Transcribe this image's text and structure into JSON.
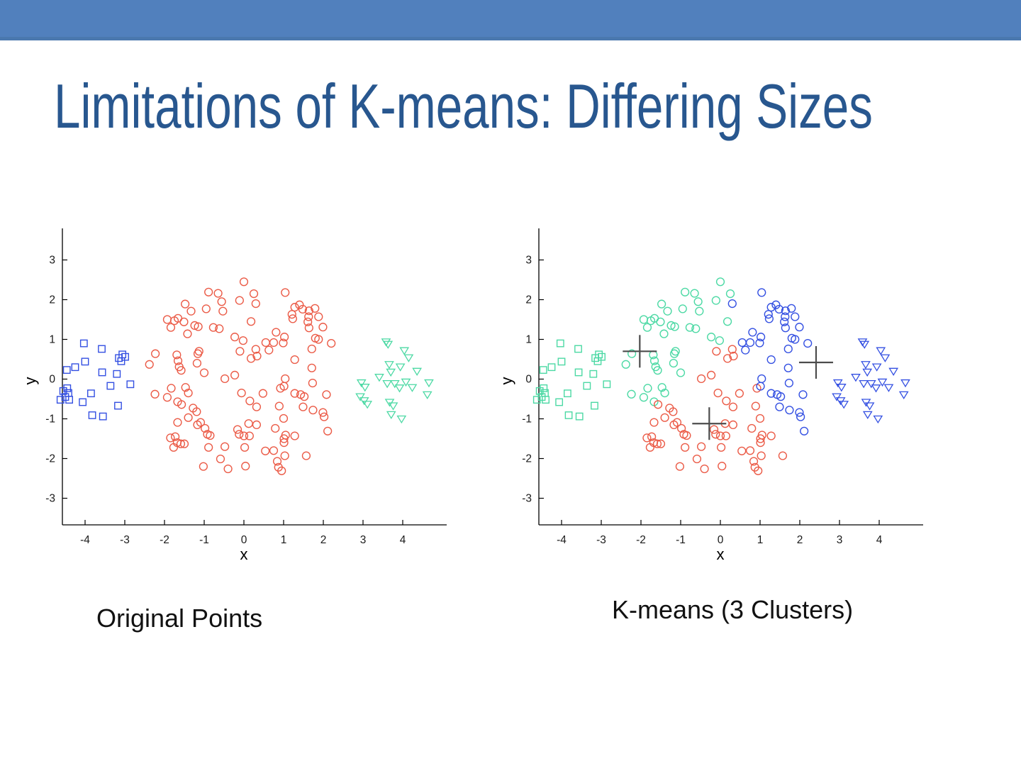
{
  "slide": {
    "header_bar": {
      "color": "#5180BD",
      "edge_color": "#4A78AE"
    },
    "title": {
      "text": "Limitations of K-means: Differing Sizes",
      "color": "#28578F"
    }
  },
  "chart_data": {
    "type": "scatter",
    "plots": [
      {
        "id": "original",
        "caption": "Original Points",
        "color_mode": "by_shape",
        "show_centroids": false
      },
      {
        "id": "kmeans",
        "caption": "K-means (3 Clusters)",
        "color_mode": "by_nearest_centroid",
        "show_centroids": true
      }
    ],
    "axes": {
      "xlabel": "x",
      "ylabel": "y",
      "xticks": [
        -4,
        -3,
        -2,
        -1,
        0,
        1,
        2,
        3,
        4
      ],
      "yticks": [
        -3,
        -2,
        -1,
        0,
        1,
        2,
        3
      ],
      "xlim": [
        -4.6,
        5.1
      ],
      "ylim": [
        -3.65,
        3.8
      ],
      "grid": false,
      "axis_color": "#000000",
      "tick_label_color": "#1a1a1a"
    },
    "palette": {
      "blue": "#3450E2",
      "red": "#EB5B47",
      "green": "#4CD9A4",
      "centroid": "#4C4C4C"
    },
    "original_shape_colors": {
      "square": "blue",
      "circle": "red",
      "triangle": "green"
    },
    "centroids": [
      {
        "x": -2.03,
        "y": 0.7,
        "color": "green"
      },
      {
        "x": -0.28,
        "y": -1.12,
        "color": "red"
      },
      {
        "x": 2.41,
        "y": 0.42,
        "color": "blue"
      }
    ],
    "clusters": [
      {
        "shape": "square",
        "points": [
          [
            -4.03,
            0.9
          ],
          [
            -3.58,
            0.76
          ],
          [
            -3.06,
            0.62
          ],
          [
            -3.15,
            0.53
          ],
          [
            -2.99,
            0.56
          ],
          [
            -3.09,
            0.45
          ],
          [
            -4.0,
            0.44
          ],
          [
            -4.46,
            0.23
          ],
          [
            -4.25,
            0.3
          ],
          [
            -3.57,
            0.17
          ],
          [
            -3.2,
            0.13
          ],
          [
            -3.36,
            -0.17
          ],
          [
            -2.86,
            -0.13
          ],
          [
            -4.45,
            -0.23
          ],
          [
            -4.42,
            -0.35
          ],
          [
            -4.55,
            -0.3
          ],
          [
            -4.5,
            -0.45
          ],
          [
            -4.62,
            -0.52
          ],
          [
            -4.4,
            -0.52
          ],
          [
            -4.06,
            -0.58
          ],
          [
            -3.85,
            -0.36
          ],
          [
            -3.17,
            -0.67
          ],
          [
            -3.82,
            -0.91
          ],
          [
            -3.55,
            -0.94
          ]
        ]
      },
      {
        "shape": "circle",
        "points": [
          [
            0.0,
            2.45
          ],
          [
            -0.89,
            2.19
          ],
          [
            -0.65,
            2.16
          ],
          [
            0.25,
            2.15
          ],
          [
            1.04,
            2.18
          ],
          [
            -0.11,
            1.98
          ],
          [
            -0.56,
            1.95
          ],
          [
            -1.48,
            1.89
          ],
          [
            0.3,
            1.9
          ],
          [
            1.4,
            1.87
          ],
          [
            -0.95,
            1.77
          ],
          [
            1.28,
            1.81
          ],
          [
            -1.33,
            1.71
          ],
          [
            -0.53,
            1.71
          ],
          [
            1.48,
            1.76
          ],
          [
            1.64,
            1.72
          ],
          [
            1.79,
            1.78
          ],
          [
            1.21,
            1.63
          ],
          [
            -1.93,
            1.5
          ],
          [
            -1.75,
            1.47
          ],
          [
            -1.66,
            1.53
          ],
          [
            -1.51,
            1.44
          ],
          [
            -1.84,
            1.3
          ],
          [
            -1.42,
            1.14
          ],
          [
            -1.24,
            1.35
          ],
          [
            -1.15,
            1.32
          ],
          [
            -0.77,
            1.3
          ],
          [
            -0.62,
            1.27
          ],
          [
            -0.23,
            1.06
          ],
          [
            0.18,
            1.45
          ],
          [
            1.23,
            1.52
          ],
          [
            1.63,
            1.57
          ],
          [
            1.88,
            1.57
          ],
          [
            1.61,
            1.44
          ],
          [
            1.64,
            1.29
          ],
          [
            1.99,
            1.31
          ],
          [
            0.81,
            1.18
          ],
          [
            1.02,
            1.06
          ],
          [
            -0.02,
            0.97
          ],
          [
            0.55,
            0.92
          ],
          [
            0.63,
            0.73
          ],
          [
            0.99,
            0.91
          ],
          [
            0.75,
            0.92
          ],
          [
            1.8,
            1.03
          ],
          [
            1.88,
            1.0
          ],
          [
            2.2,
            0.9
          ],
          [
            1.71,
            0.76
          ],
          [
            -1.16,
            0.64
          ],
          [
            -2.23,
            0.64
          ],
          [
            -2.38,
            0.37
          ],
          [
            -1.69,
            0.61
          ],
          [
            -1.66,
            0.46
          ],
          [
            -1.63,
            0.31
          ],
          [
            -1.58,
            0.22
          ],
          [
            -1.18,
            0.4
          ],
          [
            -1.13,
            0.7
          ],
          [
            -1.0,
            0.16
          ],
          [
            -0.48,
            0.01
          ],
          [
            -0.23,
            0.1
          ],
          [
            0.18,
            0.52
          ],
          [
            0.33,
            0.58
          ],
          [
            0.3,
            0.75
          ],
          [
            -0.1,
            0.7
          ],
          [
            1.28,
            0.49
          ],
          [
            1.71,
            0.28
          ],
          [
            1.04,
            0.01
          ],
          [
            1.73,
            -0.1
          ],
          [
            -2.24,
            -0.38
          ],
          [
            -1.93,
            -0.46
          ],
          [
            -1.83,
            -0.23
          ],
          [
            -1.67,
            -0.57
          ],
          [
            -1.57,
            -0.64
          ],
          [
            -1.47,
            -0.21
          ],
          [
            -1.4,
            -0.35
          ],
          [
            -1.28,
            -0.73
          ],
          [
            -1.19,
            -0.82
          ],
          [
            -0.06,
            -0.35
          ],
          [
            0.15,
            -0.55
          ],
          [
            0.32,
            -0.7
          ],
          [
            0.48,
            -0.36
          ],
          [
            0.92,
            -0.23
          ],
          [
            1.01,
            -0.18
          ],
          [
            1.28,
            -0.36
          ],
          [
            1.43,
            -0.39
          ],
          [
            1.52,
            -0.44
          ],
          [
            2.08,
            -0.39
          ],
          [
            0.89,
            -0.68
          ],
          [
            1.49,
            -0.7
          ],
          [
            1.74,
            -0.78
          ],
          [
            1.99,
            -0.84
          ],
          [
            -1.4,
            -0.97
          ],
          [
            -1.67,
            -1.09
          ],
          [
            -1.85,
            -1.48
          ],
          [
            -1.73,
            -1.45
          ],
          [
            -1.68,
            -1.6
          ],
          [
            -1.77,
            -1.72
          ],
          [
            -1.59,
            -1.63
          ],
          [
            -1.5,
            -1.63
          ],
          [
            -1.17,
            -1.15
          ],
          [
            -1.09,
            -1.09
          ],
          [
            -0.98,
            -1.24
          ],
          [
            -0.92,
            -1.39
          ],
          [
            -0.85,
            -1.42
          ],
          [
            -0.89,
            -1.72
          ],
          [
            -0.48,
            -1.7
          ],
          [
            0.12,
            -1.12
          ],
          [
            0.32,
            -1.15
          ],
          [
            -0.16,
            -1.27
          ],
          [
            -0.12,
            -1.39
          ],
          [
            0.0,
            -1.43
          ],
          [
            0.14,
            -1.43
          ],
          [
            0.02,
            -1.72
          ],
          [
            1.0,
            -0.99
          ],
          [
            0.79,
            -1.24
          ],
          [
            1.05,
            -1.41
          ],
          [
            1.01,
            -1.5
          ],
          [
            1.01,
            -1.6
          ],
          [
            1.28,
            -1.43
          ],
          [
            2.11,
            -1.31
          ],
          [
            0.75,
            -1.8
          ],
          [
            0.54,
            -1.81
          ],
          [
            2.02,
            -0.95
          ],
          [
            -1.02,
            -2.2
          ],
          [
            -0.59,
            -2.01
          ],
          [
            -0.4,
            -2.26
          ],
          [
            0.04,
            -2.19
          ],
          [
            1.03,
            -1.93
          ],
          [
            1.57,
            -1.93
          ],
          [
            0.84,
            -2.07
          ],
          [
            0.87,
            -2.22
          ],
          [
            0.95,
            -2.31
          ]
        ]
      },
      {
        "shape": "triangle",
        "points": [
          [
            3.58,
            0.94
          ],
          [
            3.63,
            0.88
          ],
          [
            4.04,
            0.72
          ],
          [
            4.15,
            0.54
          ],
          [
            3.66,
            0.37
          ],
          [
            3.94,
            0.31
          ],
          [
            4.36,
            0.2
          ],
          [
            3.7,
            0.18
          ],
          [
            3.41,
            0.05
          ],
          [
            2.96,
            -0.09
          ],
          [
            3.61,
            -0.11
          ],
          [
            3.8,
            -0.11
          ],
          [
            4.08,
            -0.07
          ],
          [
            4.66,
            -0.09
          ],
          [
            3.05,
            -0.2
          ],
          [
            3.92,
            -0.22
          ],
          [
            4.24,
            -0.21
          ],
          [
            4.62,
            -0.39
          ],
          [
            2.93,
            -0.44
          ],
          [
            3.03,
            -0.54
          ],
          [
            3.11,
            -0.63
          ],
          [
            3.67,
            -0.58
          ],
          [
            3.76,
            -0.67
          ],
          [
            3.71,
            -0.89
          ],
          [
            3.97,
            -1.0
          ]
        ]
      }
    ]
  }
}
